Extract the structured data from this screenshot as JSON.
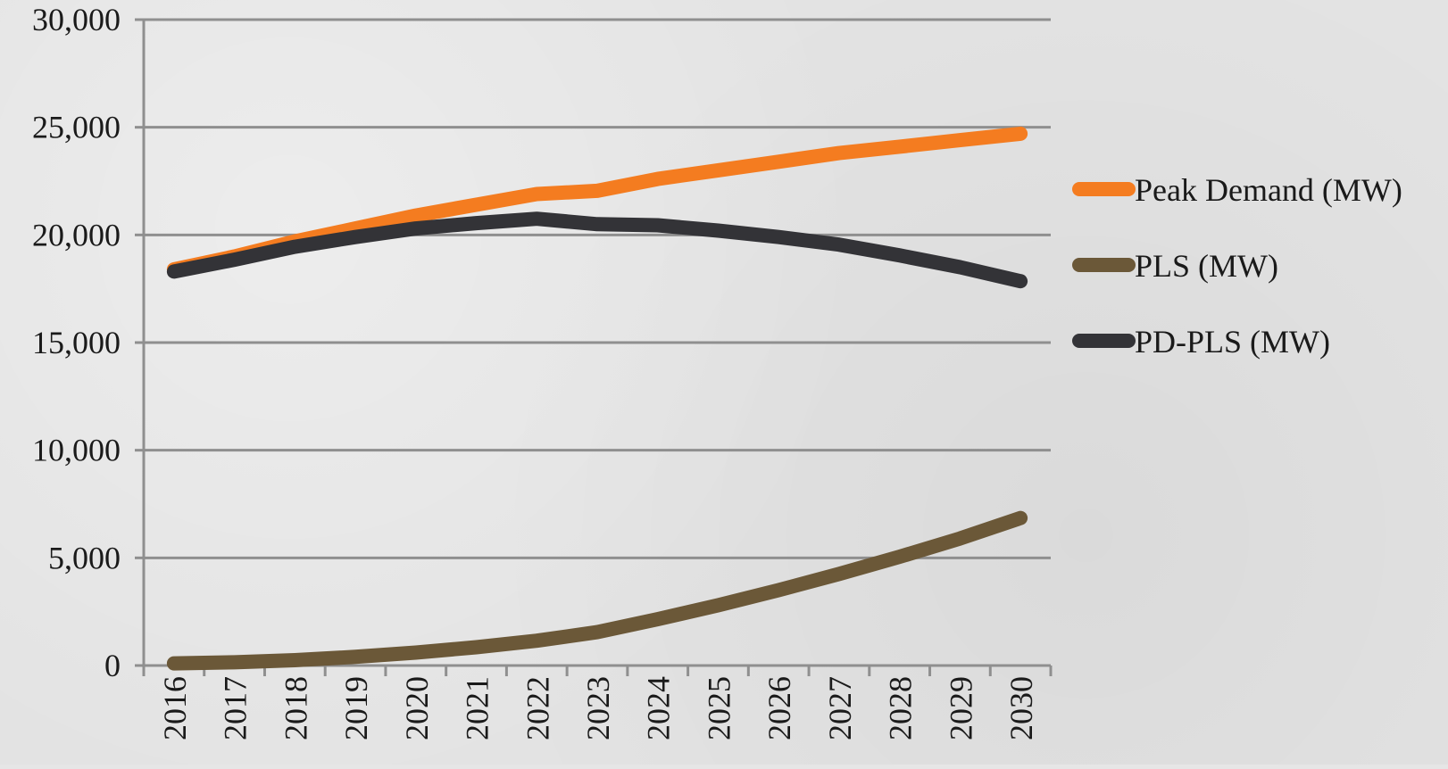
{
  "chart_data": {
    "type": "line",
    "title": "",
    "xlabel": "",
    "ylabel": "",
    "categories": [
      "2016",
      "2017",
      "2018",
      "2019",
      "2020",
      "2021",
      "2022",
      "2023",
      "2024",
      "2025",
      "2026",
      "2027",
      "2028",
      "2029",
      "2030"
    ],
    "ylim": [
      0,
      30000
    ],
    "yticks": [
      0,
      5000,
      10000,
      15000,
      20000,
      25000,
      30000
    ],
    "ytick_labels": [
      "0",
      "5,000",
      "10,000",
      "15,000",
      "20,000",
      "25,000",
      "30,000"
    ],
    "grid": true,
    "legend_position": "right",
    "series": [
      {
        "name": "Peak Demand (MW)",
        "color": "#f47c20",
        "values": [
          18400,
          19000,
          19700,
          20300,
          20900,
          21400,
          21900,
          22050,
          22600,
          23000,
          23400,
          23800,
          24100,
          24400,
          24700
        ]
      },
      {
        "name": "PLS (MW)",
        "color": "#6b5838",
        "values": [
          100,
          150,
          250,
          400,
          600,
          850,
          1150,
          1550,
          2150,
          2800,
          3500,
          4250,
          5050,
          5900,
          6850
        ]
      },
      {
        "name": "PD-PLS (MW)",
        "color": "#333337",
        "values": [
          18300,
          18850,
          19450,
          19900,
          20300,
          20550,
          20750,
          20500,
          20450,
          20200,
          19900,
          19550,
          19050,
          18500,
          17850
        ]
      }
    ]
  }
}
